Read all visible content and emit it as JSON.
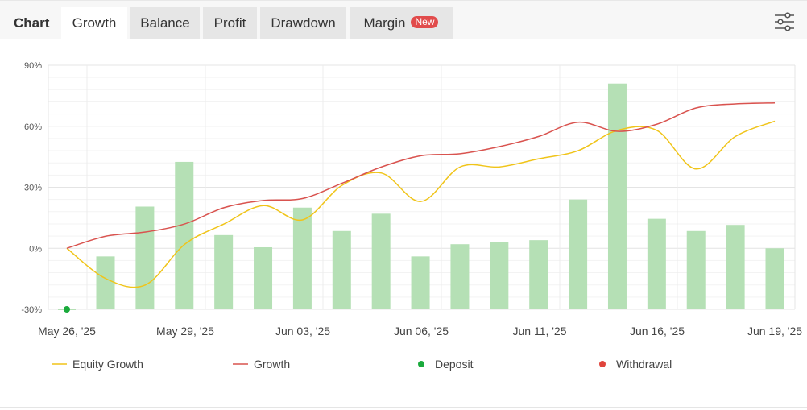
{
  "header": {
    "title": "Chart",
    "tabs": [
      {
        "label": "Growth",
        "active": true
      },
      {
        "label": "Balance",
        "active": false
      },
      {
        "label": "Profit",
        "active": false
      },
      {
        "label": "Drawdown",
        "active": false
      },
      {
        "label": "Margin",
        "active": false,
        "badge": "New"
      }
    ],
    "settings_icon": "sliders-icon"
  },
  "chart_data": {
    "type": "bar+line",
    "x_tick_labels": [
      "May 26, '25",
      "May 29, '25",
      "Jun 03, '25",
      "Jun 06, '25",
      "Jun 11, '25",
      "Jun 16, '25",
      "Jun 19, '25"
    ],
    "y_tick_labels": [
      "90%",
      "60%",
      "30%",
      "0%",
      "-30%"
    ],
    "ylim": [
      -30,
      90
    ],
    "y_ticks": [
      -30,
      0,
      30,
      60,
      90
    ],
    "grid": true,
    "legend_position": "bottom",
    "bar_color": "#b5e0b5",
    "bars": [
      -4,
      20.5,
      42.5,
      6.5,
      0.5,
      20,
      8.5,
      17,
      -4,
      2,
      3,
      4,
      24,
      81,
      14.5,
      8.5,
      11.5,
      0
    ],
    "series": [
      {
        "name": "Equity Growth",
        "color": "#f0c419",
        "values": [
          0,
          -15,
          -18,
          2,
          12,
          21,
          14,
          31,
          37,
          23,
          40,
          40,
          44,
          48,
          58,
          58,
          39,
          55,
          62.5
        ]
      },
      {
        "name": "Growth",
        "color": "#d9534f",
        "values": [
          0,
          6,
          8,
          12,
          20,
          23.5,
          24.5,
          32,
          40,
          45.5,
          46.5,
          50,
          55,
          62,
          57.5,
          61,
          69,
          71,
          71.5
        ]
      }
    ],
    "deposit": {
      "name": "Deposit",
      "color": "#1aaa3c",
      "points": [
        {
          "index": 0,
          "value": -30
        }
      ]
    },
    "withdrawal": {
      "name": "Withdrawal",
      "color": "#e0443c",
      "points": []
    },
    "legend": [
      {
        "label": "Equity Growth",
        "kind": "line",
        "color": "#f0c419"
      },
      {
        "label": "Growth",
        "kind": "line",
        "color": "#d9534f"
      },
      {
        "label": "Deposit",
        "kind": "dot",
        "color": "#1aaa3c"
      },
      {
        "label": "Withdrawal",
        "kind": "dot",
        "color": "#e0443c"
      }
    ]
  }
}
